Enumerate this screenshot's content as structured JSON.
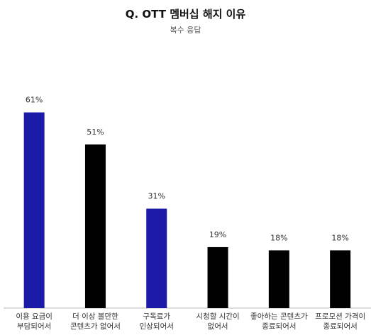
{
  "chart_data": {
    "type": "bar",
    "title": "Q. OTT 멤버십 해지 이유",
    "subtitle": "복수 응답",
    "categories": [
      [
        "이용 요금이",
        "부담되어서"
      ],
      [
        "더 이상 볼만한",
        "콘텐츠가 없어서"
      ],
      [
        "구독료가",
        "인상되어서"
      ],
      [
        "시청할 시간이",
        "없어서"
      ],
      [
        "좋아하는 콘텐츠가",
        "종료되어서"
      ],
      [
        "프로모션 가격이",
        "종료되어서"
      ]
    ],
    "values": [
      61,
      51,
      31,
      19,
      18,
      18
    ],
    "value_labels": [
      "61%",
      "51%",
      "31%",
      "19%",
      "18%",
      "18%"
    ],
    "bar_colors": [
      "#1a1aa6",
      "#000000",
      "#1a1aa6",
      "#000000",
      "#000000",
      "#000000"
    ],
    "unit": "%",
    "grid": false,
    "legend": "none"
  }
}
